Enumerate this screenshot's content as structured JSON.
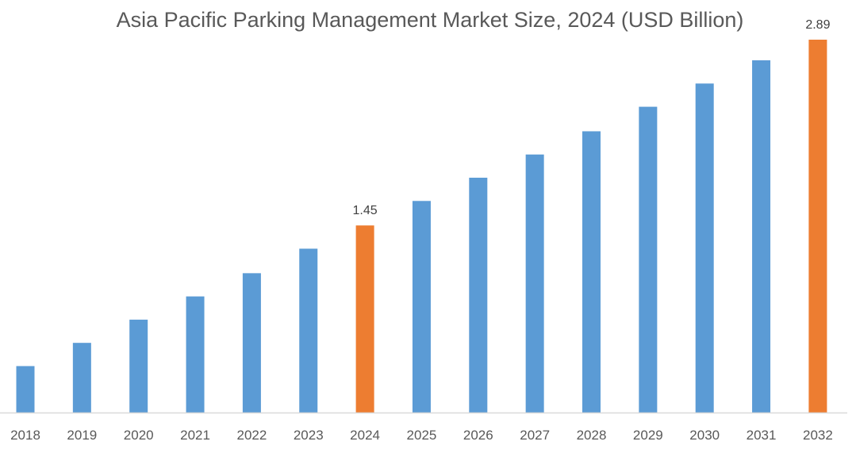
{
  "chart_data": {
    "type": "bar",
    "title": "Asia Pacific Parking Management Market Size, 2024 (USD Billion)",
    "xlabel": "",
    "ylabel": "",
    "categories": [
      "2018",
      "2019",
      "2020",
      "2021",
      "2022",
      "2023",
      "2024",
      "2025",
      "2026",
      "2027",
      "2028",
      "2029",
      "2030",
      "2031",
      "2032"
    ],
    "values": [
      0.36,
      0.54,
      0.72,
      0.9,
      1.08,
      1.27,
      1.45,
      1.64,
      1.82,
      2.0,
      2.18,
      2.37,
      2.55,
      2.73,
      2.89
    ],
    "data_labels": {
      "2024": "1.45",
      "2032": "2.89"
    },
    "highlighted": [
      "2024",
      "2032"
    ],
    "ylim": [
      0,
      2.92
    ],
    "grid": false,
    "legend": "none",
    "colors": {
      "bar": "#5B9BD5",
      "highlight": "#ED7D31",
      "axis": "#D9D9D9"
    }
  }
}
